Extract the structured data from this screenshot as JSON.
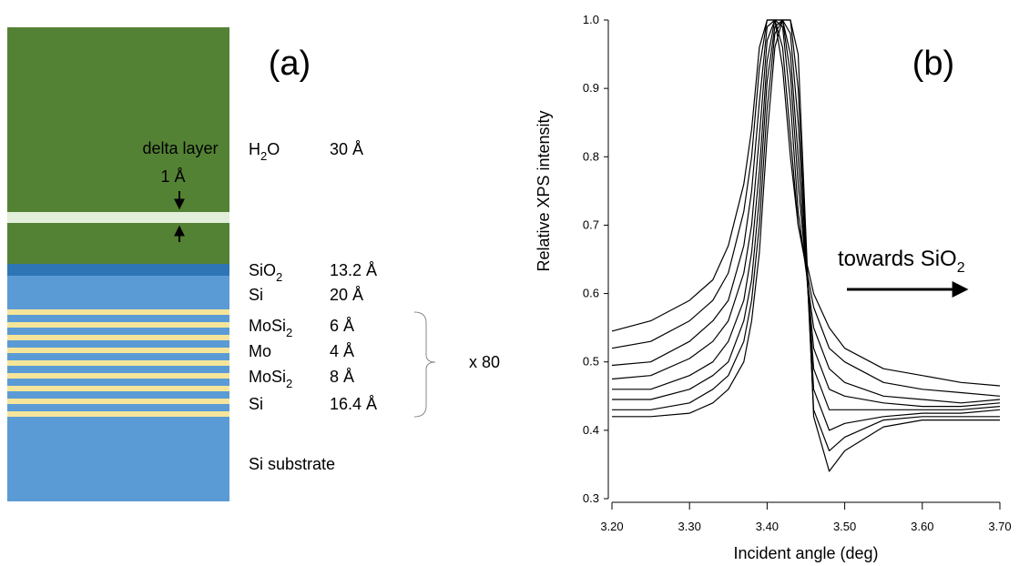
{
  "panel_a": {
    "label": "(a)",
    "delta_layer": "delta layer",
    "delta_thickness": "1 Å",
    "layers": [
      {
        "name": {
          "base": "H",
          "sub": "2",
          "tail": "O"
        },
        "thickness": "30 Å"
      },
      {
        "name": {
          "base": "SiO",
          "sub": "2",
          "tail": ""
        },
        "thickness": "13.2 Å"
      },
      {
        "name": {
          "base": "Si",
          "sub": "",
          "tail": ""
        },
        "thickness": "20 Å"
      },
      {
        "name": {
          "base": "MoSi",
          "sub": "2",
          "tail": ""
        },
        "thickness": "6 Å"
      },
      {
        "name": {
          "base": "Mo",
          "sub": "",
          "tail": ""
        },
        "thickness": "4 Å"
      },
      {
        "name": {
          "base": "MoSi",
          "sub": "2",
          "tail": ""
        },
        "thickness": "8 Å"
      },
      {
        "name": {
          "base": "Si",
          "sub": "",
          "tail": ""
        },
        "thickness": "16.4 Å"
      }
    ],
    "repeat": "x 80",
    "substrate": "Si substrate"
  },
  "chart_data": {
    "type": "line",
    "panel_label": "(b)",
    "annotation": {
      "base": "towards SiO",
      "sub": "2"
    },
    "x_label": "Incident angle (deg)",
    "y_label": "Relative XPS intensity",
    "color": "#000000",
    "x": [
      3.2,
      3.25,
      3.3,
      3.33,
      3.35,
      3.37,
      3.38,
      3.39,
      3.4,
      3.41,
      3.42,
      3.43,
      3.44,
      3.46,
      3.48,
      3.5,
      3.55,
      3.6,
      3.65,
      3.7
    ],
    "series": [
      {
        "values": [
          0.545,
          0.56,
          0.59,
          0.62,
          0.67,
          0.76,
          0.84,
          0.96,
          1.0,
          1.0,
          0.93,
          0.8,
          0.7,
          0.6,
          0.55,
          0.52,
          0.49,
          0.48,
          0.47,
          0.465
        ]
      },
      {
        "values": [
          0.52,
          0.53,
          0.56,
          0.59,
          0.63,
          0.72,
          0.8,
          0.93,
          1.0,
          1.0,
          0.96,
          0.83,
          0.7,
          0.58,
          0.52,
          0.5,
          0.47,
          0.46,
          0.455,
          0.45
        ]
      },
      {
        "values": [
          0.495,
          0.5,
          0.53,
          0.56,
          0.59,
          0.67,
          0.75,
          0.88,
          0.99,
          1.0,
          0.99,
          0.88,
          0.72,
          0.55,
          0.49,
          0.47,
          0.45,
          0.445,
          0.44,
          0.445
        ]
      },
      {
        "values": [
          0.475,
          0.48,
          0.505,
          0.53,
          0.56,
          0.63,
          0.7,
          0.83,
          0.97,
          1.0,
          1.0,
          0.92,
          0.76,
          0.52,
          0.46,
          0.45,
          0.44,
          0.435,
          0.435,
          0.44
        ]
      },
      {
        "values": [
          0.46,
          0.46,
          0.48,
          0.5,
          0.53,
          0.59,
          0.66,
          0.78,
          0.94,
          1.0,
          1.0,
          0.95,
          0.8,
          0.49,
          0.43,
          0.43,
          0.43,
          0.43,
          0.43,
          0.435
        ]
      },
      {
        "values": [
          0.445,
          0.445,
          0.46,
          0.48,
          0.5,
          0.56,
          0.62,
          0.74,
          0.91,
          0.99,
          1.0,
          0.98,
          0.85,
          0.46,
          0.4,
          0.41,
          0.42,
          0.425,
          0.425,
          0.43
        ]
      },
      {
        "values": [
          0.43,
          0.43,
          0.44,
          0.46,
          0.48,
          0.53,
          0.59,
          0.7,
          0.87,
          0.98,
          1.0,
          1.0,
          0.9,
          0.43,
          0.37,
          0.39,
          0.415,
          0.42,
          0.42,
          0.42
        ]
      },
      {
        "values": [
          0.42,
          0.42,
          0.425,
          0.44,
          0.46,
          0.5,
          0.56,
          0.66,
          0.83,
          0.96,
          1.0,
          1.0,
          0.95,
          0.42,
          0.34,
          0.37,
          0.405,
          0.415,
          0.415,
          0.415
        ]
      }
    ],
    "xlim": [
      3.2,
      3.7
    ],
    "ylim": [
      0.3,
      1.0
    ],
    "xticks": [
      {
        "value": 3.2,
        "label": "3.20"
      },
      {
        "value": 3.3,
        "label": "3.30"
      },
      {
        "value": 3.4,
        "label": "3.40"
      },
      {
        "value": 3.5,
        "label": "3.50"
      },
      {
        "value": 3.6,
        "label": "3.60"
      },
      {
        "value": 3.7,
        "label": "3.70"
      }
    ],
    "yticks": [
      0.3,
      0.4,
      0.5,
      0.6,
      0.7,
      0.8,
      0.9,
      {
        "value": 1.0,
        "label": "1.0"
      }
    ]
  }
}
